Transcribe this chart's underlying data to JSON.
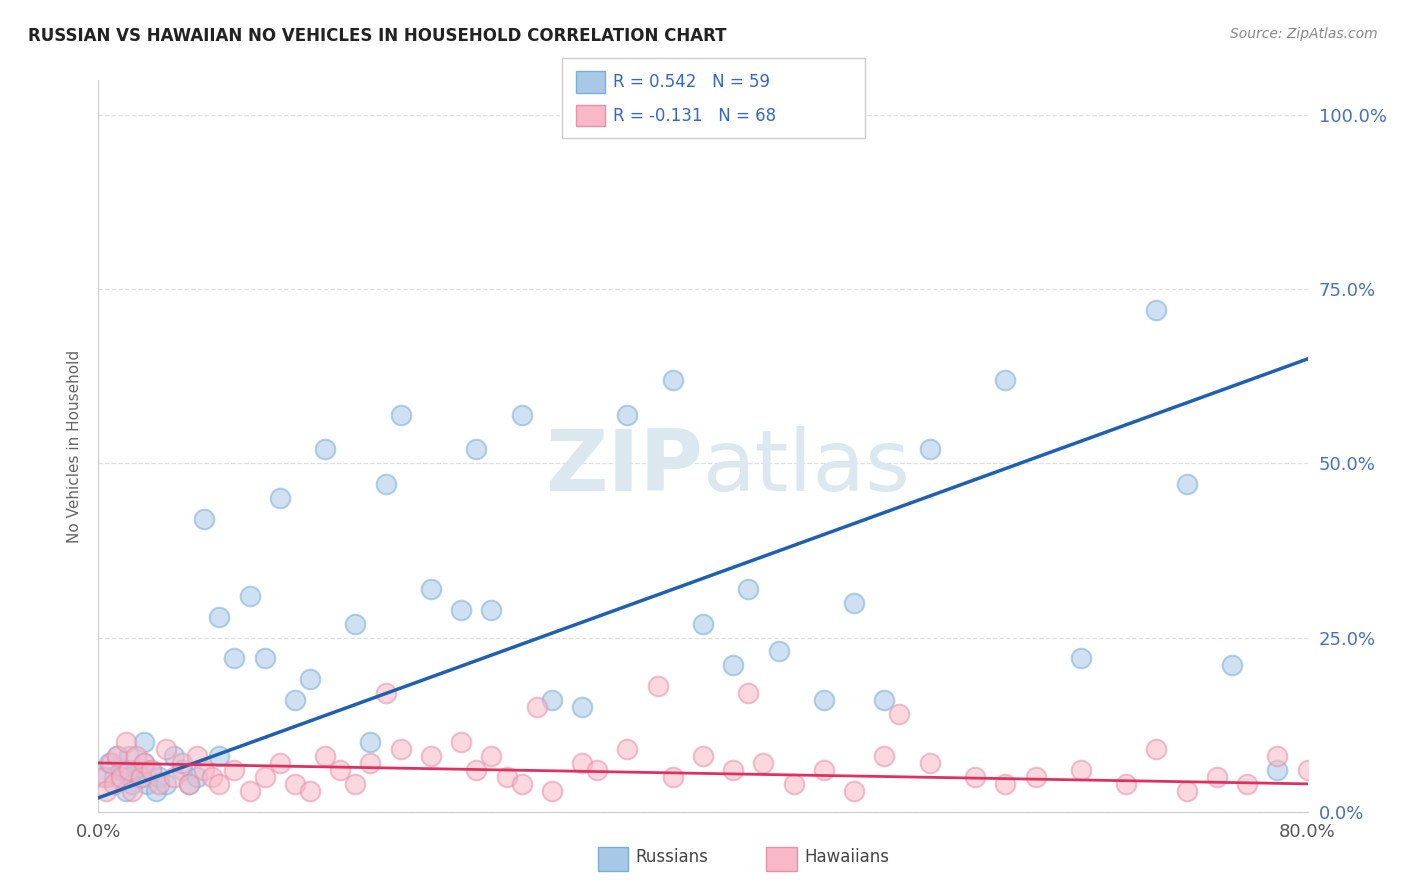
{
  "title": "RUSSIAN VS HAWAIIAN NO VEHICLES IN HOUSEHOLD CORRELATION CHART",
  "source": "Source: ZipAtlas.com",
  "ylabel": "No Vehicles in Household",
  "ytick_labels": [
    "0.0%",
    "25.0%",
    "50.0%",
    "75.0%",
    "100.0%"
  ],
  "ytick_values": [
    0,
    25,
    50,
    75,
    100
  ],
  "xlim": [
    0,
    80
  ],
  "ylim": [
    0,
    105
  ],
  "legend_r_russian": "0.542",
  "legend_n_russian": "59",
  "legend_r_hawaiian": "-0.131",
  "legend_n_hawaiian": "68",
  "russian_color_fill": "#a8c8e8",
  "russian_color_edge": "#7aafd4",
  "hawaiian_color_fill": "#f8b8c8",
  "hawaiian_color_edge": "#e890a8",
  "trendline_russian_color": "#2060b0",
  "trendline_hawaiian_color": "#e03060",
  "background_color": "#ffffff",
  "grid_color": "#dddddd",
  "watermark_color": "#dce8f0",
  "russians_x": [
    0.5,
    0.7,
    1.0,
    1.2,
    1.5,
    1.8,
    2.0,
    2.0,
    2.2,
    2.5,
    2.8,
    3.0,
    3.0,
    3.2,
    3.5,
    3.8,
    4.0,
    4.5,
    5.0,
    5.5,
    6.0,
    6.5,
    7.0,
    8.0,
    9.0,
    10.0,
    11.0,
    12.0,
    13.0,
    15.0,
    17.0,
    19.0,
    20.0,
    22.0,
    24.0,
    25.0,
    28.0,
    30.0,
    35.0,
    38.0,
    40.0,
    43.0,
    45.0,
    48.0,
    50.0,
    52.0,
    55.0,
    60.0,
    65.0,
    70.0,
    72.0,
    75.0,
    78.0,
    42.0,
    32.0,
    18.0,
    14.0,
    26.0,
    8.0
  ],
  "russians_y": [
    5.0,
    7.0,
    5.0,
    8.0,
    6.0,
    3.0,
    5.0,
    8.0,
    4.0,
    6.0,
    5.0,
    7.0,
    10.0,
    4.0,
    6.0,
    3.0,
    5.0,
    4.0,
    8.0,
    6.0,
    4.0,
    5.0,
    42.0,
    28.0,
    22.0,
    31.0,
    22.0,
    45.0,
    16.0,
    52.0,
    27.0,
    47.0,
    57.0,
    32.0,
    29.0,
    52.0,
    57.0,
    16.0,
    57.0,
    62.0,
    27.0,
    32.0,
    23.0,
    16.0,
    30.0,
    16.0,
    52.0,
    62.0,
    22.0,
    72.0,
    47.0,
    21.0,
    6.0,
    21.0,
    15.0,
    10.0,
    19.0,
    29.0,
    8.0
  ],
  "hawaiians_x": [
    0.3,
    0.5,
    0.8,
    1.0,
    1.2,
    1.5,
    1.8,
    2.0,
    2.2,
    2.5,
    2.8,
    3.0,
    3.5,
    4.0,
    4.5,
    5.0,
    5.5,
    6.0,
    6.5,
    7.0,
    7.5,
    8.0,
    9.0,
    10.0,
    11.0,
    12.0,
    13.0,
    14.0,
    15.0,
    16.0,
    17.0,
    18.0,
    20.0,
    22.0,
    24.0,
    25.0,
    26.0,
    27.0,
    28.0,
    30.0,
    32.0,
    33.0,
    35.0,
    38.0,
    40.0,
    42.0,
    44.0,
    46.0,
    48.0,
    50.0,
    52.0,
    55.0,
    58.0,
    60.0,
    62.0,
    65.0,
    68.0,
    70.0,
    72.0,
    74.0,
    76.0,
    78.0,
    80.0,
    19.0,
    29.0,
    37.0,
    43.0,
    53.0
  ],
  "hawaiians_y": [
    5.0,
    3.0,
    7.0,
    4.0,
    8.0,
    5.0,
    10.0,
    6.0,
    3.0,
    8.0,
    5.0,
    7.0,
    6.0,
    4.0,
    9.0,
    5.0,
    7.0,
    4.0,
    8.0,
    6.0,
    5.0,
    4.0,
    6.0,
    3.0,
    5.0,
    7.0,
    4.0,
    3.0,
    8.0,
    6.0,
    4.0,
    7.0,
    9.0,
    8.0,
    10.0,
    6.0,
    8.0,
    5.0,
    4.0,
    3.0,
    7.0,
    6.0,
    9.0,
    5.0,
    8.0,
    6.0,
    7.0,
    4.0,
    6.0,
    3.0,
    8.0,
    7.0,
    5.0,
    4.0,
    5.0,
    6.0,
    4.0,
    9.0,
    3.0,
    5.0,
    4.0,
    8.0,
    6.0,
    17.0,
    15.0,
    18.0,
    17.0,
    14.0
  ]
}
